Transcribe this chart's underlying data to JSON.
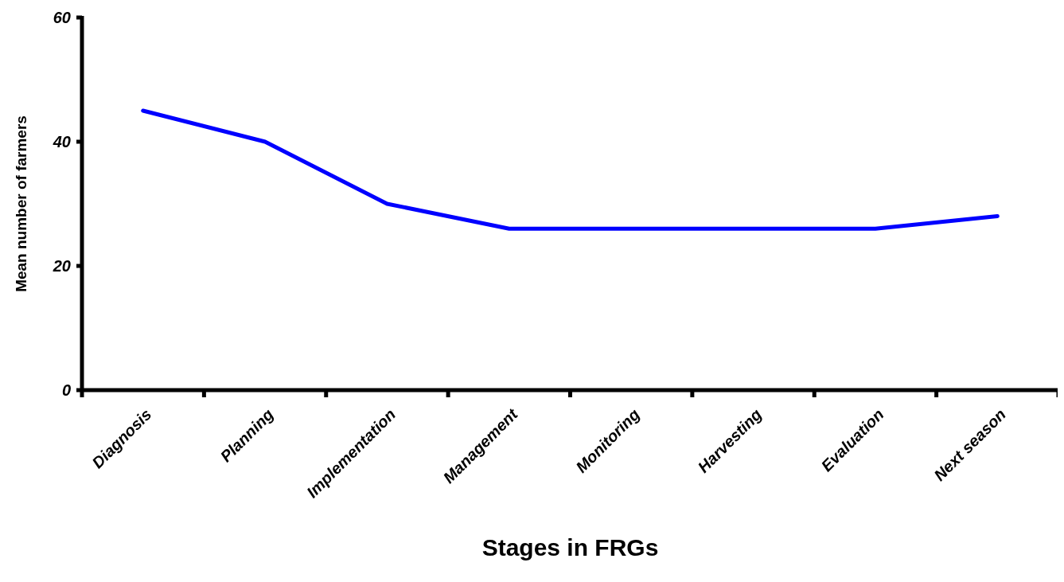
{
  "chart_data": {
    "type": "line",
    "xlabel": "Stages in FRGs",
    "ylabel": "Mean number of farmers",
    "categories": [
      "Diagnosis",
      "Planning",
      "Implementation",
      "Management",
      "Monitoring",
      "Harvesting",
      "Evaluation",
      "Next season"
    ],
    "series": [
      {
        "color": "#0000ff",
        "values": [
          45,
          40,
          30,
          26,
          26,
          26,
          26,
          28
        ]
      }
    ],
    "ylim": [
      0,
      60
    ],
    "yticks": [
      0,
      20,
      40,
      60
    ],
    "grid": false,
    "marker": "none",
    "line_style": "solid"
  }
}
